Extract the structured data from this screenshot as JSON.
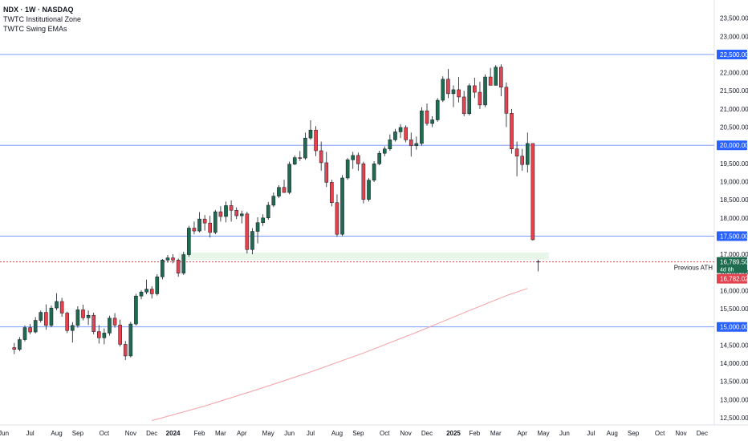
{
  "legend": {
    "title": "NDX · 1W · NASDAQ",
    "indicator_1": "TWTC Institutional Zone",
    "indicator_2": "TWTC Swing EMAs"
  },
  "colors": {
    "up": "#1e6b4f",
    "down": "#e2434f",
    "hline": "#2962ff",
    "axis_text": "#131722",
    "zone": "#e8f5e9",
    "ema": "#f6a0a6"
  },
  "chart_data": {
    "type": "candlestick",
    "title": "NDX · 1W · NASDAQ",
    "y_axis": {
      "ylim": [
        12300,
        24000
      ],
      "ticks": [
        12500,
        13000,
        13500,
        14000,
        14500,
        15000,
        15500,
        16000,
        16500,
        17000,
        17500,
        18000,
        18500,
        19000,
        19500,
        20000,
        20500,
        21000,
        21500,
        22000,
        22500,
        23000,
        23500
      ],
      "tick_labels": [
        "12,500.00",
        "13,000.00",
        "13,500.00",
        "14,000.00",
        "14,500.00",
        "15,000.00",
        "15,500.00",
        "16,000.00",
        "16,500.00",
        "17,000.00",
        "17,500.00",
        "18,000.00",
        "18,500.00",
        "19,000.00",
        "19,500.00",
        "20,000.00",
        "20,500.00",
        "21,000.00",
        "21,500.00",
        "22,000.00",
        "22,500.00",
        "23,000.00",
        "23,500.00"
      ],
      "position": "right"
    },
    "x_axis": {
      "labels": [
        {
          "text": "Jun",
          "week": -2,
          "bold": false
        },
        {
          "text": "Jul",
          "week": 3,
          "bold": false
        },
        {
          "text": "Aug",
          "week": 8,
          "bold": false
        },
        {
          "text": "Sep",
          "week": 12,
          "bold": false
        },
        {
          "text": "Oct",
          "week": 17,
          "bold": false
        },
        {
          "text": "Nov",
          "week": 22,
          "bold": false
        },
        {
          "text": "Dec",
          "week": 26,
          "bold": false
        },
        {
          "text": "2024",
          "week": 30,
          "bold": true
        },
        {
          "text": "Feb",
          "week": 35,
          "bold": false
        },
        {
          "text": "Mar",
          "week": 39,
          "bold": false
        },
        {
          "text": "Apr",
          "week": 43,
          "bold": false
        },
        {
          "text": "May",
          "week": 48,
          "bold": false
        },
        {
          "text": "Jun",
          "week": 52,
          "bold": false
        },
        {
          "text": "Jul",
          "week": 56,
          "bold": false
        },
        {
          "text": "Aug",
          "week": 61,
          "bold": false
        },
        {
          "text": "Sep",
          "week": 65,
          "bold": false
        },
        {
          "text": "Oct",
          "week": 70,
          "bold": false
        },
        {
          "text": "Nov",
          "week": 74,
          "bold": false
        },
        {
          "text": "Dec",
          "week": 78,
          "bold": false
        },
        {
          "text": "2025",
          "week": 83,
          "bold": true
        },
        {
          "text": "Feb",
          "week": 87,
          "bold": false
        },
        {
          "text": "Mar",
          "week": 91,
          "bold": false
        },
        {
          "text": "Apr",
          "week": 96,
          "bold": false
        },
        {
          "text": "May",
          "week": 100,
          "bold": false
        },
        {
          "text": "Jun",
          "week": 104,
          "bold": false
        },
        {
          "text": "Jul",
          "week": 109,
          "bold": false
        },
        {
          "text": "Aug",
          "week": 113,
          "bold": false
        },
        {
          "text": "Sep",
          "week": 117,
          "bold": false
        },
        {
          "text": "Oct",
          "week": 122,
          "bold": false
        },
        {
          "text": "Nov",
          "week": 126,
          "bold": false
        },
        {
          "text": "Dec",
          "week": 130,
          "bold": false
        }
      ],
      "xlim": [
        -2.7,
        132.3
      ]
    },
    "candles": [
      [
        14430,
        14560,
        14250,
        14380
      ],
      [
        14380,
        14720,
        14330,
        14650
      ],
      [
        14650,
        15040,
        14600,
        14980
      ],
      [
        14980,
        15080,
        14800,
        14860
      ],
      [
        14860,
        15270,
        14820,
        15180
      ],
      [
        15180,
        15450,
        15120,
        15400
      ],
      [
        15400,
        15620,
        14920,
        15040
      ],
      [
        15040,
        15590,
        14990,
        15520
      ],
      [
        15520,
        15930,
        15460,
        15700
      ],
      [
        15700,
        15800,
        15280,
        15380
      ],
      [
        15380,
        15420,
        14830,
        14900
      ],
      [
        14900,
        15130,
        14570,
        15040
      ],
      [
        15040,
        15570,
        14980,
        15470
      ],
      [
        15470,
        15610,
        15180,
        15250
      ],
      [
        15250,
        15450,
        15050,
        15320
      ],
      [
        15320,
        15390,
        14800,
        14870
      ],
      [
        14870,
        15050,
        14540,
        14700
      ],
      [
        14700,
        14960,
        14520,
        14830
      ],
      [
        14830,
        15310,
        14760,
        15240
      ],
      [
        15240,
        15380,
        14980,
        15050
      ],
      [
        15050,
        15200,
        14460,
        14520
      ],
      [
        14520,
        14610,
        14090,
        14200
      ],
      [
        14200,
        15140,
        14160,
        15080
      ],
      [
        15080,
        15910,
        15040,
        15850
      ],
      [
        15850,
        16010,
        15760,
        15960
      ],
      [
        15960,
        16300,
        15900,
        16040
      ],
      [
        16040,
        16120,
        15780,
        15910
      ],
      [
        15910,
        16450,
        15860,
        16380
      ],
      [
        16380,
        16870,
        16310,
        16840
      ],
      [
        16840,
        16980,
        16770,
        16900
      ],
      [
        16900,
        17000,
        16750,
        16840
      ],
      [
        16840,
        16880,
        16380,
        16480
      ],
      [
        16480,
        17070,
        16430,
        16990
      ],
      [
        16990,
        17780,
        16930,
        17720
      ],
      [
        17720,
        17900,
        17550,
        17640
      ],
      [
        17640,
        18160,
        17600,
        17970
      ],
      [
        17970,
        18080,
        17650,
        17860
      ],
      [
        17860,
        18060,
        17460,
        17600
      ],
      [
        17600,
        18220,
        17550,
        18170
      ],
      [
        18170,
        18320,
        17900,
        18040
      ],
      [
        18040,
        18450,
        17880,
        18340
      ],
      [
        18340,
        18480,
        17900,
        18210
      ],
      [
        18210,
        18290,
        17970,
        18060
      ],
      [
        18060,
        18200,
        17850,
        18110
      ],
      [
        18110,
        18170,
        17020,
        17130
      ],
      [
        17130,
        17720,
        17000,
        17630
      ],
      [
        17630,
        18020,
        17300,
        17870
      ],
      [
        17870,
        18100,
        17780,
        18000
      ],
      [
        18000,
        18440,
        17950,
        18350
      ],
      [
        18350,
        18700,
        18300,
        18600
      ],
      [
        18600,
        18900,
        18550,
        18840
      ],
      [
        18840,
        19050,
        18700,
        18700
      ],
      [
        18700,
        19550,
        18650,
        19480
      ],
      [
        19480,
        19720,
        19450,
        19660
      ],
      [
        19660,
        19840,
        19570,
        19650
      ],
      [
        19650,
        20350,
        19600,
        20200
      ],
      [
        20200,
        20690,
        20150,
        20420
      ],
      [
        20420,
        20530,
        19700,
        19850
      ],
      [
        19850,
        20100,
        19300,
        19520
      ],
      [
        19520,
        19820,
        18850,
        18980
      ],
      [
        18980,
        19050,
        18320,
        18420
      ],
      [
        18420,
        18650,
        17480,
        17550
      ],
      [
        17550,
        19180,
        17500,
        19100
      ],
      [
        19100,
        19650,
        19050,
        19600
      ],
      [
        19600,
        19820,
        19350,
        19720
      ],
      [
        19720,
        19800,
        19300,
        19490
      ],
      [
        19490,
        19550,
        18400,
        18510
      ],
      [
        18510,
        19100,
        18450,
        19040
      ],
      [
        19040,
        19560,
        18990,
        19490
      ],
      [
        19490,
        19850,
        19450,
        19780
      ],
      [
        19780,
        19970,
        19700,
        19900
      ],
      [
        19900,
        20300,
        19850,
        20150
      ],
      [
        20150,
        20450,
        20100,
        20370
      ],
      [
        20370,
        20580,
        20200,
        20490
      ],
      [
        20490,
        20550,
        20080,
        20150
      ],
      [
        20150,
        20350,
        19690,
        19990
      ],
      [
        19990,
        20240,
        19880,
        20050
      ],
      [
        20050,
        21050,
        19990,
        20950
      ],
      [
        20950,
        21150,
        20540,
        20600
      ],
      [
        20600,
        20800,
        20500,
        20700
      ],
      [
        20700,
        21300,
        20650,
        21240
      ],
      [
        21240,
        21900,
        21190,
        21820
      ],
      [
        21820,
        22100,
        21300,
        21420
      ],
      [
        21420,
        21650,
        21050,
        21530
      ],
      [
        21530,
        21880,
        21180,
        21330
      ],
      [
        21330,
        21500,
        20800,
        20870
      ],
      [
        20870,
        21700,
        20820,
        21640
      ],
      [
        21640,
        21860,
        21300,
        21460
      ],
      [
        21460,
        21750,
        21000,
        21110
      ],
      [
        21110,
        21950,
        21050,
        21880
      ],
      [
        21880,
        22130,
        21700,
        21650
      ],
      [
        21650,
        22210,
        21700,
        22150
      ],
      [
        22150,
        22230,
        21350,
        21600
      ],
      [
        21600,
        21730,
        20500,
        20880
      ],
      [
        20880,
        21000,
        19770,
        19900
      ],
      [
        19900,
        20100,
        19150,
        19700
      ],
      [
        19700,
        19900,
        19300,
        19470
      ],
      [
        19470,
        20350,
        19250,
        20050
      ],
      [
        20050,
        19950,
        17380,
        17400
      ]
    ],
    "last_candle": {
      "index": 99,
      "open": 16790,
      "high": 16850,
      "low": 16530,
      "close": 16790
    },
    "horizontal_levels": [
      {
        "value": 22500,
        "label": "22,500.00"
      },
      {
        "value": 20000,
        "label": "20,000.00"
      },
      {
        "value": 17500,
        "label": "17,500.00"
      },
      {
        "value": 15000,
        "label": "15,000.00"
      }
    ],
    "previous_ath": {
      "value": 16790,
      "label": "Previous ATH"
    },
    "zone": {
      "from_index": 31,
      "to_index": 101,
      "low": 16840,
      "high": 17050
    },
    "ema_line": {
      "x": [
        26,
        36,
        46,
        56,
        66,
        76,
        86,
        93,
        97
      ],
      "y": [
        12420,
        12820,
        13280,
        13760,
        14280,
        14850,
        15450,
        15860,
        16060
      ]
    },
    "price_labels": {
      "current": "16,789.50",
      "countdown": "4d 8h",
      "low": "16,782.02"
    }
  }
}
